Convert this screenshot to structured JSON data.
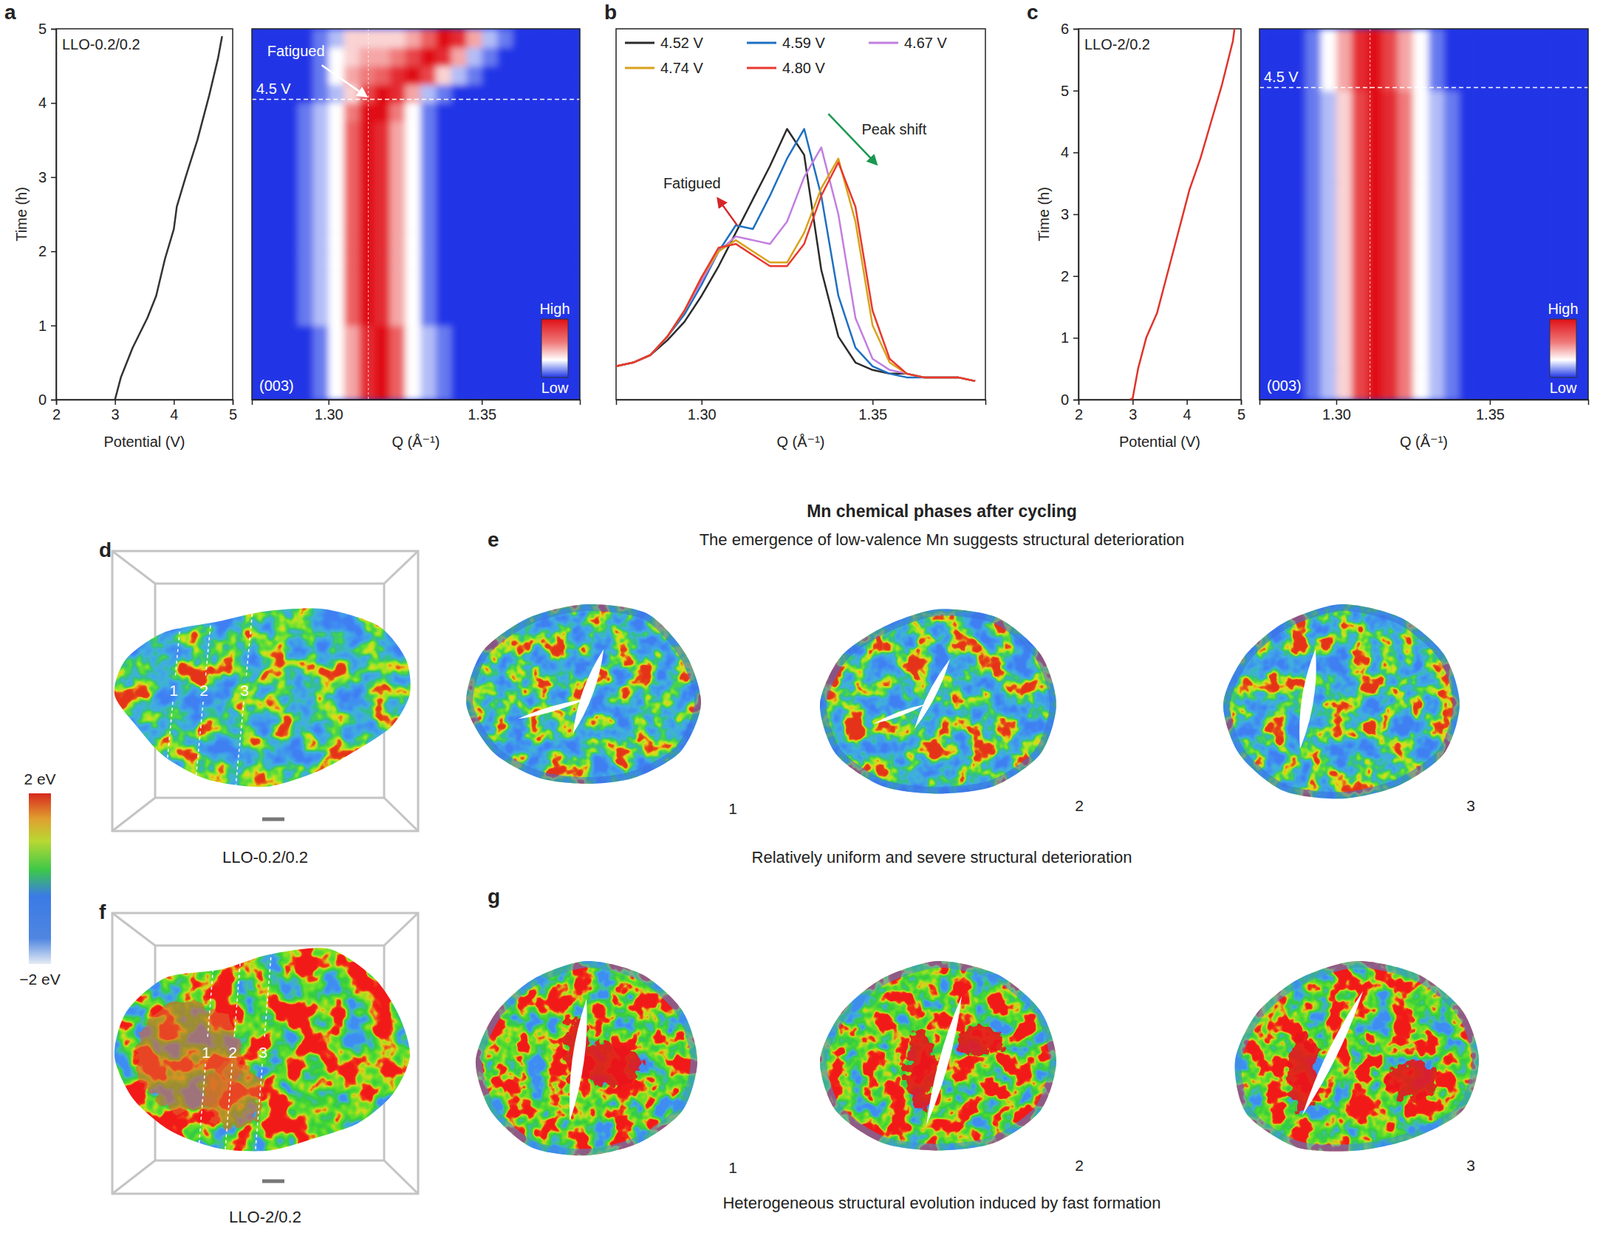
{
  "chart_data": [
    {
      "type": "line",
      "panel_label": "a",
      "title": "LLO-0.2/0.2",
      "xlabel": "Potential (V)",
      "ylabel": "Time (h)",
      "x": [
        3.0,
        3.1,
        3.3,
        3.55,
        3.7,
        3.85,
        4.0,
        4.05,
        4.2,
        4.4,
        4.6,
        4.75,
        4.82
      ],
      "series": [
        {
          "color": "#333333",
          "values": [
            0,
            0.3,
            0.7,
            1.1,
            1.4,
            1.9,
            2.3,
            2.6,
            3.0,
            3.5,
            4.1,
            4.6,
            4.9
          ]
        }
      ],
      "xlim": [
        2,
        5
      ],
      "ylim": [
        0,
        5
      ],
      "xticks": [
        2,
        3,
        4,
        5
      ],
      "yticks": [
        0,
        1,
        2,
        3,
        4,
        5
      ]
    },
    {
      "type": "heatmap",
      "xlabel": "Q (Å⁻¹)",
      "x": [
        1.2775,
        1.2825,
        1.2875,
        1.2925,
        1.2975,
        1.3025,
        1.3075,
        1.3125,
        1.3175,
        1.3225,
        1.3275,
        1.3325,
        1.3375,
        1.3425,
        1.3475,
        1.3525,
        1.3575,
        1.3625,
        1.3675,
        1.3725,
        1.3775
      ],
      "y": [
        0.125,
        0.375,
        0.625,
        0.875,
        1.125,
        1.375,
        1.625,
        1.875,
        2.125,
        2.375,
        2.625,
        2.875,
        3.125,
        3.375,
        3.625,
        3.875,
        4.125,
        4.375,
        4.625,
        4.875
      ],
      "z": [
        [
          0,
          0,
          0,
          0,
          1,
          3,
          5,
          9,
          10,
          7,
          3,
          2,
          1,
          0,
          0,
          0,
          0,
          0,
          0,
          0,
          0
        ],
        [
          0,
          0,
          0,
          0,
          1,
          3,
          5,
          9,
          10,
          7,
          3,
          2,
          1,
          0,
          0,
          0,
          0,
          0,
          0,
          0,
          0
        ],
        [
          0,
          0,
          0,
          0,
          1,
          3,
          5,
          9,
          10,
          7,
          3,
          2,
          1,
          0,
          0,
          0,
          0,
          0,
          0,
          0,
          0
        ],
        [
          0,
          0,
          0,
          0,
          1,
          3,
          5,
          9,
          10,
          7,
          3,
          2,
          1,
          0,
          0,
          0,
          0,
          0,
          0,
          0,
          0
        ],
        [
          0,
          0,
          0,
          1,
          2,
          3,
          7,
          10,
          9,
          5,
          3,
          1,
          0,
          0,
          0,
          0,
          0,
          0,
          0,
          0,
          0
        ],
        [
          0,
          0,
          0,
          1,
          2,
          3,
          7,
          10,
          9,
          5,
          3,
          1,
          0,
          0,
          0,
          0,
          0,
          0,
          0,
          0,
          0
        ],
        [
          0,
          0,
          0,
          1,
          2,
          3,
          7,
          10,
          9,
          5,
          3,
          1,
          0,
          0,
          0,
          0,
          0,
          0,
          0,
          0,
          0
        ],
        [
          0,
          0,
          0,
          1,
          2,
          3,
          7,
          10,
          9,
          5,
          3,
          1,
          0,
          0,
          0,
          0,
          0,
          0,
          0,
          0,
          0
        ],
        [
          0,
          0,
          0,
          1,
          2,
          3,
          7,
          10,
          9,
          5,
          3,
          1,
          0,
          0,
          0,
          0,
          0,
          0,
          0,
          0,
          0
        ],
        [
          0,
          0,
          0,
          1,
          2,
          3,
          7,
          10,
          9,
          5,
          3,
          1,
          0,
          0,
          0,
          0,
          0,
          0,
          0,
          0,
          0
        ],
        [
          0,
          0,
          0,
          1,
          2,
          3,
          7,
          10,
          9,
          5,
          3,
          1,
          0,
          0,
          0,
          0,
          0,
          0,
          0,
          0,
          0
        ],
        [
          0,
          0,
          0,
          1,
          2,
          3,
          7,
          10,
          9,
          5,
          3,
          1,
          0,
          0,
          0,
          0,
          0,
          0,
          0,
          0,
          0
        ],
        [
          0,
          0,
          0,
          1,
          2,
          3,
          7,
          10,
          9,
          5,
          3,
          1,
          0,
          0,
          0,
          0,
          0,
          0,
          0,
          0,
          0
        ],
        [
          0,
          0,
          0,
          1,
          2,
          3,
          7,
          10,
          9,
          5,
          3,
          1,
          0,
          0,
          0,
          0,
          0,
          0,
          0,
          0,
          0
        ],
        [
          0,
          0,
          0,
          1,
          2,
          3,
          7,
          10,
          9,
          5,
          3,
          1,
          0,
          0,
          0,
          0,
          0,
          0,
          0,
          0,
          0
        ],
        [
          0,
          0,
          0,
          1,
          2,
          3,
          6,
          10,
          10,
          6,
          3,
          1,
          0,
          0,
          0,
          0,
          0,
          0,
          0,
          0,
          0
        ],
        [
          0,
          0,
          0,
          0,
          1,
          2,
          4,
          8,
          10,
          9,
          5,
          2,
          1,
          0,
          0,
          0,
          0,
          0,
          0,
          0,
          0
        ],
        [
          0,
          0,
          0,
          0,
          1,
          3,
          5,
          6,
          7,
          9,
          10,
          8,
          4,
          2,
          1,
          0,
          0,
          0,
          0,
          0,
          0
        ],
        [
          0,
          0,
          0,
          0,
          1,
          3,
          4,
          5,
          5,
          6,
          8,
          10,
          9,
          5,
          2,
          1,
          0,
          0,
          0,
          0,
          0
        ],
        [
          0,
          0,
          0,
          0,
          1,
          2,
          4,
          4,
          4,
          4,
          5,
          7,
          10,
          9,
          5,
          2,
          1,
          0,
          0,
          0,
          0
        ]
      ],
      "xlim": [
        1.275,
        1.382
      ],
      "ylim": [
        0,
        5
      ],
      "xticks": [
        {
          "value": 1.3,
          "label": "1.30"
        },
        {
          "value": 1.35,
          "label": "1.35"
        }
      ],
      "tick_labels": "x",
      "colorbar": {
        "range": [
          0,
          10
        ],
        "ticks": [
          {
            "value": 10,
            "label": "High"
          },
          {
            "value": 0,
            "label": "Low"
          }
        ]
      },
      "hline": {
        "y": 4.05,
        "label": "4.5 V"
      },
      "vline": 1.313,
      "annotations": [
        {
          "text": "Fatigued",
          "x": 1.28,
          "y": 4.63
        },
        {
          "text": "(003)"
        }
      ]
    },
    {
      "type": "line",
      "panel_label": "b",
      "xlabel": "Q (Å⁻¹)",
      "x": [
        1.275,
        1.28,
        1.285,
        1.29,
        1.295,
        1.3,
        1.305,
        1.31,
        1.315,
        1.32,
        1.325,
        1.33,
        1.335,
        1.34,
        1.345,
        1.35,
        1.355,
        1.36,
        1.365,
        1.37,
        1.375,
        1.38
      ],
      "series": [
        {
          "name": "4.52 V",
          "color": "#2b2b2b",
          "values": [
            9,
            10,
            12,
            16,
            21,
            28,
            36,
            45,
            54,
            63,
            73,
            66,
            35,
            17,
            10,
            8,
            7,
            7,
            6,
            6,
            6,
            5
          ]
        },
        {
          "name": "4.59 V",
          "color": "#1f6fc1",
          "values": [
            9,
            10,
            12,
            17,
            23,
            31,
            40,
            47,
            46,
            55,
            65,
            73,
            55,
            28,
            14,
            9,
            7,
            6,
            6,
            6,
            6,
            5
          ]
        },
        {
          "name": "4.67 V",
          "color": "#c27ee0",
          "values": [
            9,
            10,
            12,
            17,
            24,
            32,
            40,
            44,
            43,
            42,
            48,
            60,
            68,
            50,
            22,
            11,
            8,
            7,
            6,
            6,
            6,
            5
          ]
        },
        {
          "name": "4.74 V",
          "color": "#d9a21b",
          "values": [
            9,
            10,
            12,
            17,
            24,
            33,
            40,
            43,
            40,
            37,
            37,
            45,
            57,
            65,
            48,
            20,
            10,
            7,
            6,
            6,
            6,
            5
          ]
        },
        {
          "name": "4.80 V",
          "color": "#e8392f",
          "values": [
            9,
            10,
            12,
            17,
            24,
            33,
            41,
            42,
            39,
            36,
            36,
            42,
            55,
            64,
            52,
            24,
            11,
            7,
            6,
            6,
            6,
            5
          ]
        }
      ],
      "xlim": [
        1.275,
        1.383
      ],
      "ylim": [
        0,
        100
      ],
      "xticks": [
        {
          "value": 1.3,
          "label": "1.30"
        },
        {
          "value": 1.35,
          "label": "1.35"
        }
      ],
      "tick_labels": "x",
      "legend": "top",
      "annotations": [
        {
          "text": "Fatigued",
          "x": 1.2888,
          "y": 57,
          "color": "#d62728"
        },
        {
          "text": "Peak shift",
          "x": 1.3468,
          "y": 71.5,
          "color": "#1a9850"
        }
      ]
    },
    {
      "type": "line",
      "panel_label": "c",
      "title": "LLO-2/0.2",
      "xlabel": "Potential (V)",
      "ylabel": "Time (h)",
      "x": [
        2.95,
        3.0,
        3.1,
        3.25,
        3.45,
        3.6,
        3.75,
        3.9,
        4.05,
        4.25,
        4.45,
        4.65,
        4.85,
        4.88
      ],
      "series": [
        {
          "color": "#e0342c",
          "values": [
            0,
            0.02,
            0.5,
            1.0,
            1.4,
            1.9,
            2.4,
            2.9,
            3.4,
            3.9,
            4.5,
            5.1,
            5.8,
            6.0
          ]
        }
      ],
      "xlim": [
        2,
        5
      ],
      "ylim": [
        0,
        6
      ],
      "xticks": [
        2,
        3,
        4,
        5
      ],
      "yticks": [
        0,
        1,
        2,
        3,
        4,
        5,
        6
      ]
    },
    {
      "type": "heatmap",
      "xlabel": "Q (Å⁻¹)",
      "x": [
        1.2775,
        1.2825,
        1.2875,
        1.2925,
        1.2975,
        1.3025,
        1.3075,
        1.3125,
        1.3175,
        1.3225,
        1.3275,
        1.3325,
        1.3375,
        1.3425,
        1.3475,
        1.3525,
        1.3575,
        1.3625,
        1.3675,
        1.3725,
        1.3775
      ],
      "y": [
        0.25,
        0.75,
        1.25,
        1.75,
        2.25,
        2.75,
        3.25,
        3.75,
        4.25,
        4.75,
        5.25,
        5.75
      ],
      "z": [
        [
          0,
          0,
          0,
          1,
          2,
          4,
          8,
          10,
          9,
          6,
          3,
          2,
          1,
          0,
          0,
          0,
          0,
          0,
          0,
          0,
          0
        ],
        [
          0,
          0,
          0,
          1,
          2,
          4,
          8,
          10,
          9,
          6,
          3,
          2,
          1,
          0,
          0,
          0,
          0,
          0,
          0,
          0,
          0
        ],
        [
          0,
          0,
          0,
          1,
          2,
          4,
          8,
          10,
          9,
          6,
          3,
          2,
          1,
          0,
          0,
          0,
          0,
          0,
          0,
          0,
          0
        ],
        [
          0,
          0,
          0,
          1,
          2,
          4,
          8,
          10,
          9,
          6,
          3,
          2,
          1,
          0,
          0,
          0,
          0,
          0,
          0,
          0,
          0
        ],
        [
          0,
          0,
          0,
          1,
          2,
          4,
          8,
          10,
          9,
          6,
          3,
          2,
          1,
          0,
          0,
          0,
          0,
          0,
          0,
          0,
          0
        ],
        [
          0,
          0,
          0,
          1,
          2,
          4,
          8,
          10,
          9,
          6,
          3,
          2,
          1,
          0,
          0,
          0,
          0,
          0,
          0,
          0,
          0
        ],
        [
          0,
          0,
          0,
          1,
          2,
          4,
          8,
          10,
          9,
          6,
          3,
          2,
          1,
          0,
          0,
          0,
          0,
          0,
          0,
          0,
          0
        ],
        [
          0,
          0,
          0,
          1,
          2,
          4,
          8,
          10,
          9,
          6,
          3,
          2,
          1,
          0,
          0,
          0,
          0,
          0,
          0,
          0,
          0
        ],
        [
          0,
          0,
          0,
          1,
          2,
          4,
          8,
          10,
          9,
          6,
          3,
          2,
          1,
          0,
          0,
          0,
          0,
          0,
          0,
          0,
          0
        ],
        [
          0,
          0,
          0,
          1,
          2,
          4,
          8,
          10,
          9,
          6,
          3,
          2,
          1,
          0,
          0,
          0,
          0,
          0,
          0,
          0,
          0
        ],
        [
          0,
          0,
          0,
          1,
          3,
          5,
          9,
          10,
          8,
          5,
          3,
          1,
          0,
          0,
          0,
          0,
          0,
          0,
          0,
          0,
          0
        ],
        [
          0,
          0,
          0,
          1,
          3,
          5,
          9,
          10,
          8,
          5,
          3,
          1,
          0,
          0,
          0,
          0,
          0,
          0,
          0,
          0,
          0
        ]
      ],
      "xlim": [
        1.275,
        1.382
      ],
      "ylim": [
        0,
        6
      ],
      "xticks": [
        {
          "value": 1.3,
          "label": "1.30"
        },
        {
          "value": 1.35,
          "label": "1.35"
        }
      ],
      "tick_labels": "x",
      "colorbar": {
        "range": [
          0,
          10
        ],
        "ticks": [
          {
            "value": 10,
            "label": "High"
          },
          {
            "value": 0,
            "label": "Low"
          }
        ]
      },
      "hline": {
        "y": 5.05,
        "label": "4.5 V"
      },
      "vline": 1.311,
      "annotations": [
        {
          "text": "(003)"
        }
      ]
    }
  ],
  "figure": {
    "title": "Mn chemical phases after cycling",
    "subtitle": "The emergence of low-valence Mn suggests structural deterioration",
    "colorbar": {
      "range": [
        -2,
        2
      ],
      "ticks": [
        {
          "value": 2,
          "label": "2 eV"
        },
        {
          "value": -2,
          "label": "−2 eV"
        }
      ]
    },
    "panels": [
      {
        "label": "d",
        "caption": "LLO-0.2/0.2",
        "slice_labels": [
          "1",
          "2",
          "3"
        ]
      },
      {
        "label": "e",
        "caption": "Relatively uniform and severe structural deterioration",
        "slice_labels": [
          "1",
          "2",
          "3"
        ]
      },
      {
        "label": "f",
        "caption": "LLO-2/0.2",
        "slice_labels": [
          "1",
          "2",
          "3"
        ]
      },
      {
        "label": "g",
        "caption": "Heterogeneous structural evolution induced by fast formation",
        "slice_labels": [
          "1",
          "2",
          "3"
        ]
      }
    ]
  }
}
